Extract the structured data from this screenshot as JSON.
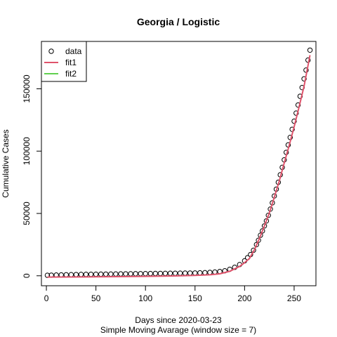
{
  "chart_data": {
    "type": "scatter",
    "title": "Georgia / Logistic",
    "xlabel": "Days since 2020-03-23",
    "xlabel2": "Simple Moving Avarage (window size = 7)",
    "ylabel": "Cumulative Cases",
    "xlim": [
      -5,
      272
    ],
    "ylim": [
      -8000,
      188000
    ],
    "x_ticks": [
      0,
      50,
      100,
      150,
      200,
      250
    ],
    "x_tick_labels": [
      "0",
      "50",
      "100",
      "150",
      "200",
      "250"
    ],
    "y_ticks": [
      0,
      50000,
      100000,
      150000
    ],
    "y_tick_labels": [
      "0",
      "50000",
      "100000",
      "150000"
    ],
    "legend": {
      "position": "top-left",
      "entries": [
        {
          "label": "data",
          "symbol": "open-circle",
          "color": "#000000"
        },
        {
          "label": "fit1",
          "symbol": "line",
          "color": "#DF536B"
        },
        {
          "label": "fit2",
          "symbol": "line",
          "color": "#61D04F"
        }
      ]
    },
    "series": [
      {
        "name": "data",
        "kind": "points",
        "color": "#000000",
        "x": [
          1,
          5,
          10,
          15,
          20,
          25,
          30,
          35,
          40,
          45,
          50,
          55,
          60,
          65,
          70,
          75,
          80,
          85,
          90,
          95,
          100,
          105,
          110,
          115,
          120,
          125,
          130,
          135,
          140,
          145,
          150,
          155,
          160,
          165,
          170,
          175,
          180,
          185,
          190,
          195,
          200,
          203,
          206,
          209,
          212,
          214,
          216,
          218,
          220,
          222,
          224,
          226,
          228,
          230,
          232,
          234,
          236,
          238,
          240,
          242,
          244,
          246,
          248,
          250,
          252,
          254,
          256,
          258,
          260,
          262,
          264,
          266
        ],
        "y": [
          400,
          500,
          600,
          700,
          800,
          900,
          1000,
          1100,
          1150,
          1200,
          1250,
          1300,
          1350,
          1400,
          1450,
          1500,
          1550,
          1600,
          1650,
          1700,
          1750,
          1800,
          1850,
          1900,
          1950,
          2000,
          2050,
          2100,
          2150,
          2200,
          2250,
          2350,
          2500,
          2700,
          3000,
          3400,
          4000,
          5200,
          6800,
          9000,
          12000,
          14500,
          17000,
          20500,
          25000,
          28500,
          32500,
          36000,
          40000,
          44000,
          48500,
          53500,
          58500,
          64000,
          69500,
          75000,
          81000,
          87000,
          93000,
          99000,
          105000,
          111000,
          117500,
          124000,
          130500,
          137000,
          144000,
          151000,
          158000,
          165000,
          173000,
          181000
        ]
      },
      {
        "name": "fit1",
        "kind": "line",
        "color": "#DF536B",
        "x": [
          1,
          25,
          50,
          75,
          100,
          125,
          150,
          165,
          175,
          185,
          195,
          200,
          205,
          210,
          215,
          220,
          225,
          230,
          235,
          240,
          245,
          250,
          255,
          260,
          266
        ],
        "y": [
          -1000,
          -950,
          -850,
          -700,
          -500,
          -200,
          300,
          800,
          1600,
          3600,
          7500,
          10500,
          14000,
          21000,
          30000,
          40000,
          50500,
          63000,
          76000,
          90500,
          104500,
          119500,
          135500,
          152000,
          177000
        ]
      },
      {
        "name": "fit2",
        "kind": "line",
        "color": "#61D04F",
        "x": [],
        "y": []
      }
    ]
  }
}
